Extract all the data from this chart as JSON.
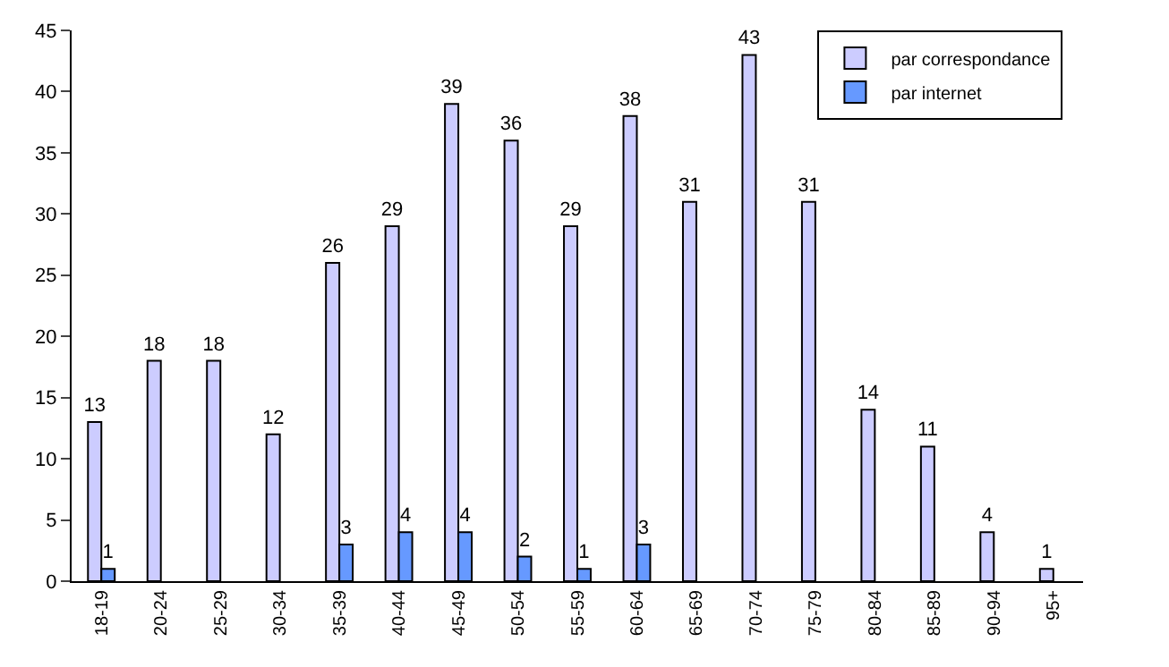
{
  "chart_data": {
    "type": "bar",
    "categories": [
      "18-19",
      "20-24",
      "25-29",
      "30-34",
      "35-39",
      "40-44",
      "45-49",
      "50-54",
      "55-59",
      "60-64",
      "65-69",
      "70-74",
      "75-79",
      "80-84",
      "85-89",
      "90-94",
      "95+"
    ],
    "series": [
      {
        "name": "par correspondance",
        "color": "#ccccff",
        "values": [
          13,
          18,
          18,
          12,
          26,
          29,
          39,
          36,
          29,
          38,
          31,
          43,
          31,
          14,
          11,
          4,
          1
        ]
      },
      {
        "name": "par internet",
        "color": "#6699ff",
        "values": [
          1,
          null,
          null,
          null,
          3,
          4,
          4,
          2,
          1,
          3,
          null,
          null,
          null,
          null,
          null,
          null,
          null
        ]
      }
    ],
    "ylim": [
      0,
      45
    ],
    "yticks": [
      0,
      5,
      10,
      15,
      20,
      25,
      30,
      35,
      40,
      45
    ],
    "data_labels": true,
    "legend": "top right"
  }
}
